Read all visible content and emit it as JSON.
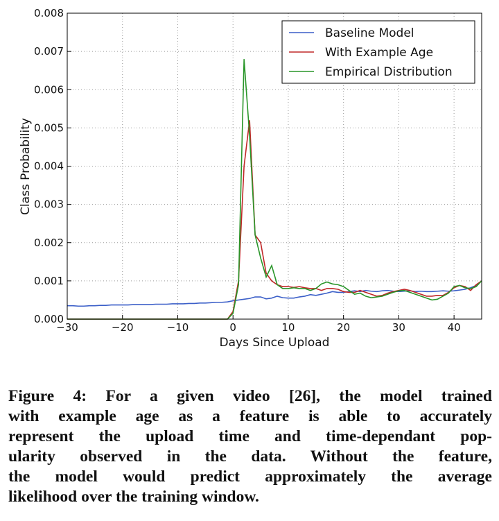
{
  "chart_data": {
    "type": "line",
    "xlabel": "Days Since Upload",
    "ylabel": "Class Probability",
    "x": [
      -30,
      -29,
      -28,
      -27,
      -26,
      -25,
      -24,
      -23,
      -22,
      -21,
      -20,
      -19,
      -18,
      -17,
      -16,
      -15,
      -14,
      -13,
      -12,
      -11,
      -10,
      -9,
      -8,
      -7,
      -6,
      -5,
      -4,
      -3,
      -2,
      -1,
      0,
      1,
      2,
      3,
      4,
      5,
      6,
      7,
      8,
      9,
      10,
      11,
      12,
      13,
      14,
      15,
      16,
      17,
      18,
      19,
      20,
      21,
      22,
      23,
      24,
      25,
      26,
      27,
      28,
      29,
      30,
      31,
      32,
      33,
      34,
      35,
      36,
      37,
      38,
      39,
      40,
      41,
      42,
      43,
      44,
      45
    ],
    "series": [
      {
        "name": "Baseline Model",
        "color": "#3b5fc8",
        "values": [
          0.00035,
          0.00035,
          0.00034,
          0.00034,
          0.00035,
          0.00035,
          0.00036,
          0.00036,
          0.00037,
          0.00037,
          0.00037,
          0.00037,
          0.00038,
          0.00038,
          0.00038,
          0.00038,
          0.00039,
          0.00039,
          0.00039,
          0.0004,
          0.0004,
          0.0004,
          0.00041,
          0.00041,
          0.00042,
          0.00042,
          0.00043,
          0.00044,
          0.00044,
          0.00045,
          0.00048,
          0.0005,
          0.00052,
          0.00054,
          0.00058,
          0.00058,
          0.00053,
          0.00055,
          0.0006,
          0.00056,
          0.00055,
          0.00055,
          0.00058,
          0.0006,
          0.00064,
          0.00062,
          0.00065,
          0.00068,
          0.00072,
          0.0007,
          0.0007,
          0.00072,
          0.00074,
          0.00072,
          0.00075,
          0.00073,
          0.00072,
          0.00074,
          0.00075,
          0.00073,
          0.00072,
          0.00073,
          0.00074,
          0.00072,
          0.00073,
          0.00072,
          0.00072,
          0.00073,
          0.00074,
          0.00073,
          0.00074,
          0.00076,
          0.00078,
          0.00082,
          0.00088,
          0.001
        ]
      },
      {
        "name": "With Example Age",
        "color": "#c02828",
        "values": [
          0,
          0,
          0,
          0,
          0,
          0,
          0,
          0,
          0,
          0,
          0,
          0,
          0,
          0,
          0,
          0,
          0,
          0,
          0,
          0,
          0,
          0,
          0,
          0,
          0,
          0,
          0,
          0,
          0,
          0,
          0.0002,
          0.001,
          0.004,
          0.0052,
          0.0022,
          0.002,
          0.0012,
          0.001,
          0.0009,
          0.00085,
          0.00085,
          0.00083,
          0.00085,
          0.00082,
          0.0008,
          0.0008,
          0.00075,
          0.0008,
          0.0008,
          0.00078,
          0.00072,
          0.0007,
          0.0007,
          0.00075,
          0.0007,
          0.00065,
          0.0006,
          0.00062,
          0.00068,
          0.00072,
          0.00075,
          0.00078,
          0.00075,
          0.0007,
          0.00065,
          0.0006,
          0.0006,
          0.00062,
          0.00062,
          0.0007,
          0.00082,
          0.00088,
          0.00085,
          0.00075,
          0.0009,
          0.001
        ]
      },
      {
        "name": "Empirical Distribution",
        "color": "#2a962a",
        "values": [
          0,
          0,
          0,
          0,
          0,
          0,
          0,
          0,
          0,
          0,
          0,
          0,
          0,
          0,
          0,
          0,
          0,
          0,
          0,
          0,
          0,
          0,
          0,
          0,
          0,
          0,
          0,
          0,
          0,
          0,
          0.00015,
          0.0009,
          0.0068,
          0.0048,
          0.0022,
          0.0016,
          0.0011,
          0.0014,
          0.0009,
          0.0008,
          0.0008,
          0.00082,
          0.0008,
          0.0008,
          0.00075,
          0.0008,
          0.00092,
          0.00097,
          0.00092,
          0.0009,
          0.00085,
          0.00075,
          0.00065,
          0.00068,
          0.0006,
          0.00056,
          0.00058,
          0.0006,
          0.00065,
          0.0007,
          0.00074,
          0.00075,
          0.0007,
          0.00065,
          0.0006,
          0.00055,
          0.0005,
          0.00052,
          0.0006,
          0.00068,
          0.00085,
          0.00088,
          0.00082,
          0.0008,
          0.00085,
          0.001
        ]
      }
    ],
    "xlim": [
      -30,
      45
    ],
    "xticks": [
      {
        "value": -30,
        "label": "−30"
      },
      {
        "value": -20,
        "label": "−20"
      },
      {
        "value": -10,
        "label": "−10"
      },
      0,
      10,
      20,
      30,
      40
    ],
    "ylim": [
      0,
      0.008
    ],
    "yticks": [
      {
        "value": 0,
        "label": "0.000"
      },
      {
        "value": 0.001,
        "label": "0.001"
      },
      {
        "value": 0.002,
        "label": "0.002"
      },
      {
        "value": 0.003,
        "label": "0.003"
      },
      {
        "value": 0.004,
        "label": "0.004"
      },
      {
        "value": 0.005,
        "label": "0.005"
      },
      {
        "value": 0.006,
        "label": "0.006"
      },
      {
        "value": 0.007,
        "label": "0.007"
      },
      {
        "value": 0.008,
        "label": "0.008"
      }
    ],
    "grid": true,
    "legend": "upper right"
  },
  "caption": {
    "lines": [
      "Figure 4: For a given video [26], the model trained",
      "with example age as a feature is able to accurately",
      "represent the upload time and time-dependant pop-",
      "ularity observed in the data. Without the feature,",
      "the model would predict approximately the average",
      "likelihood over the training window."
    ]
  }
}
